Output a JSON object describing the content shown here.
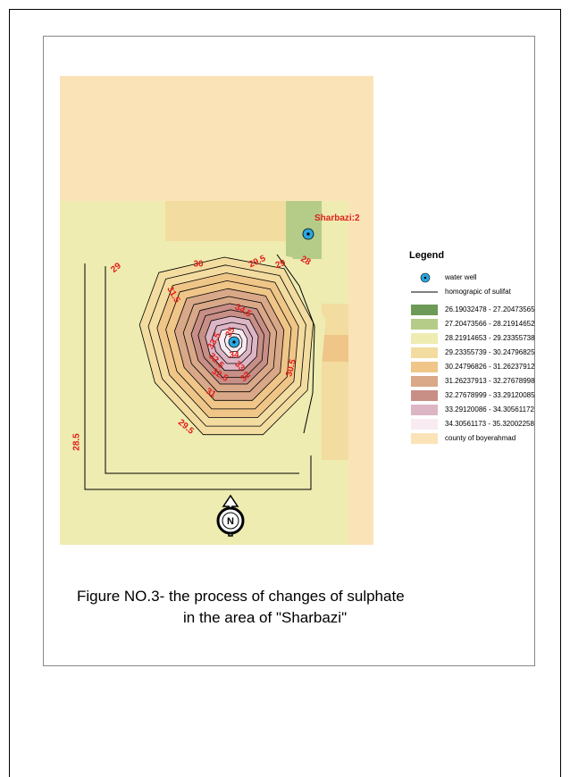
{
  "map": {
    "well_label": "Sharbazi:2",
    "contour_labels": [
      "29",
      "30",
      "29.5",
      "29",
      "28",
      "31.5",
      "34.5",
      "35",
      "33.5",
      "32.5",
      "34",
      "33",
      "32.5",
      "32",
      "31",
      "30.5",
      "29.5",
      "28.5"
    ],
    "north": "N"
  },
  "legend": {
    "title": "Legend",
    "items": [
      {
        "label": "water well",
        "color": "#2aa8e0"
      },
      {
        "label": "homograpic of sulifat",
        "color": "#000000"
      },
      {
        "label": "26.19032478 - 27.20473565",
        "color": "#6e9a58"
      },
      {
        "label": "27.20473566 - 28.21914652",
        "color": "#b5cc88"
      },
      {
        "label": "28.21914653 - 29.23355738",
        "color": "#eeecb0"
      },
      {
        "label": "29.23355739 - 30.24796825",
        "color": "#f3dca0"
      },
      {
        "label": "30.24796826 - 31.26237912",
        "color": "#efc688"
      },
      {
        "label": "31.26237913 - 32.27678998",
        "color": "#d9a888"
      },
      {
        "label": "32.27678999 - 33.29120085",
        "color": "#c78f86"
      },
      {
        "label": "33.29120086 - 34.30561172",
        "color": "#ddb6c6"
      },
      {
        "label": "34.30561173 - 35.32002258",
        "color": "#f8ecf2"
      },
      {
        "label": "county of boyerahmad",
        "color": "#fbe3b8"
      }
    ]
  },
  "caption": {
    "line1": "Figure NO.3- the process of changes of sulphate",
    "line2": "in the area of \"Sharbazi\""
  }
}
